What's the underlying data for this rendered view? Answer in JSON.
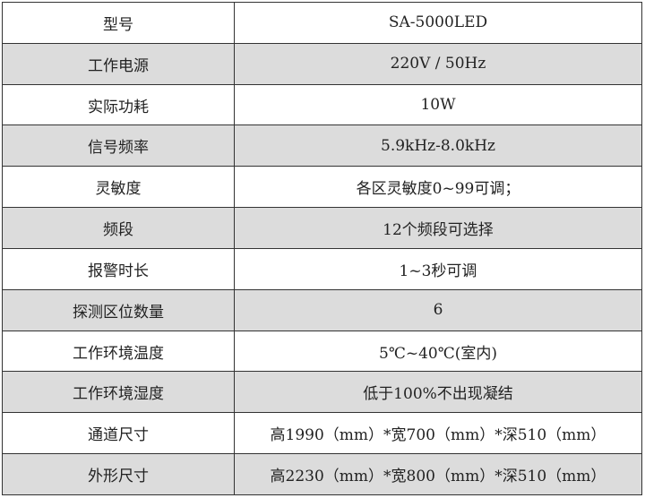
{
  "spec_table": {
    "rows": [
      {
        "label": "型号",
        "value": "SA-5000LED",
        "shaded": false
      },
      {
        "label": "工作电源",
        "value": "220V / 50Hz",
        "shaded": true
      },
      {
        "label": "实际功耗",
        "value": "10W",
        "shaded": false
      },
      {
        "label": "信号频率",
        "value": "5.9kHz-8.0kHz",
        "shaded": true
      },
      {
        "label": "灵敏度",
        "value": "各区灵敏度0~99可调；",
        "shaded": false
      },
      {
        "label": "频段",
        "value": "12个频段可选择",
        "shaded": true
      },
      {
        "label": "报警时长",
        "value": "1~3秒可调",
        "shaded": false
      },
      {
        "label": "探测区位数量",
        "value": "6",
        "shaded": true
      },
      {
        "label": "工作环境温度",
        "value": "5℃~40℃(室内)",
        "shaded": false
      },
      {
        "label": "工作环境湿度",
        "value": "低于100%不出现凝结",
        "shaded": true
      },
      {
        "label": "通道尺寸",
        "value": "高1990（mm）*宽700（mm）*深510（mm）",
        "shaded": false
      },
      {
        "label": "外形尺寸",
        "value": "高2230（mm）*宽800（mm）*深510（mm）",
        "shaded": true
      }
    ],
    "shade_color": "#dcdcdc"
  }
}
